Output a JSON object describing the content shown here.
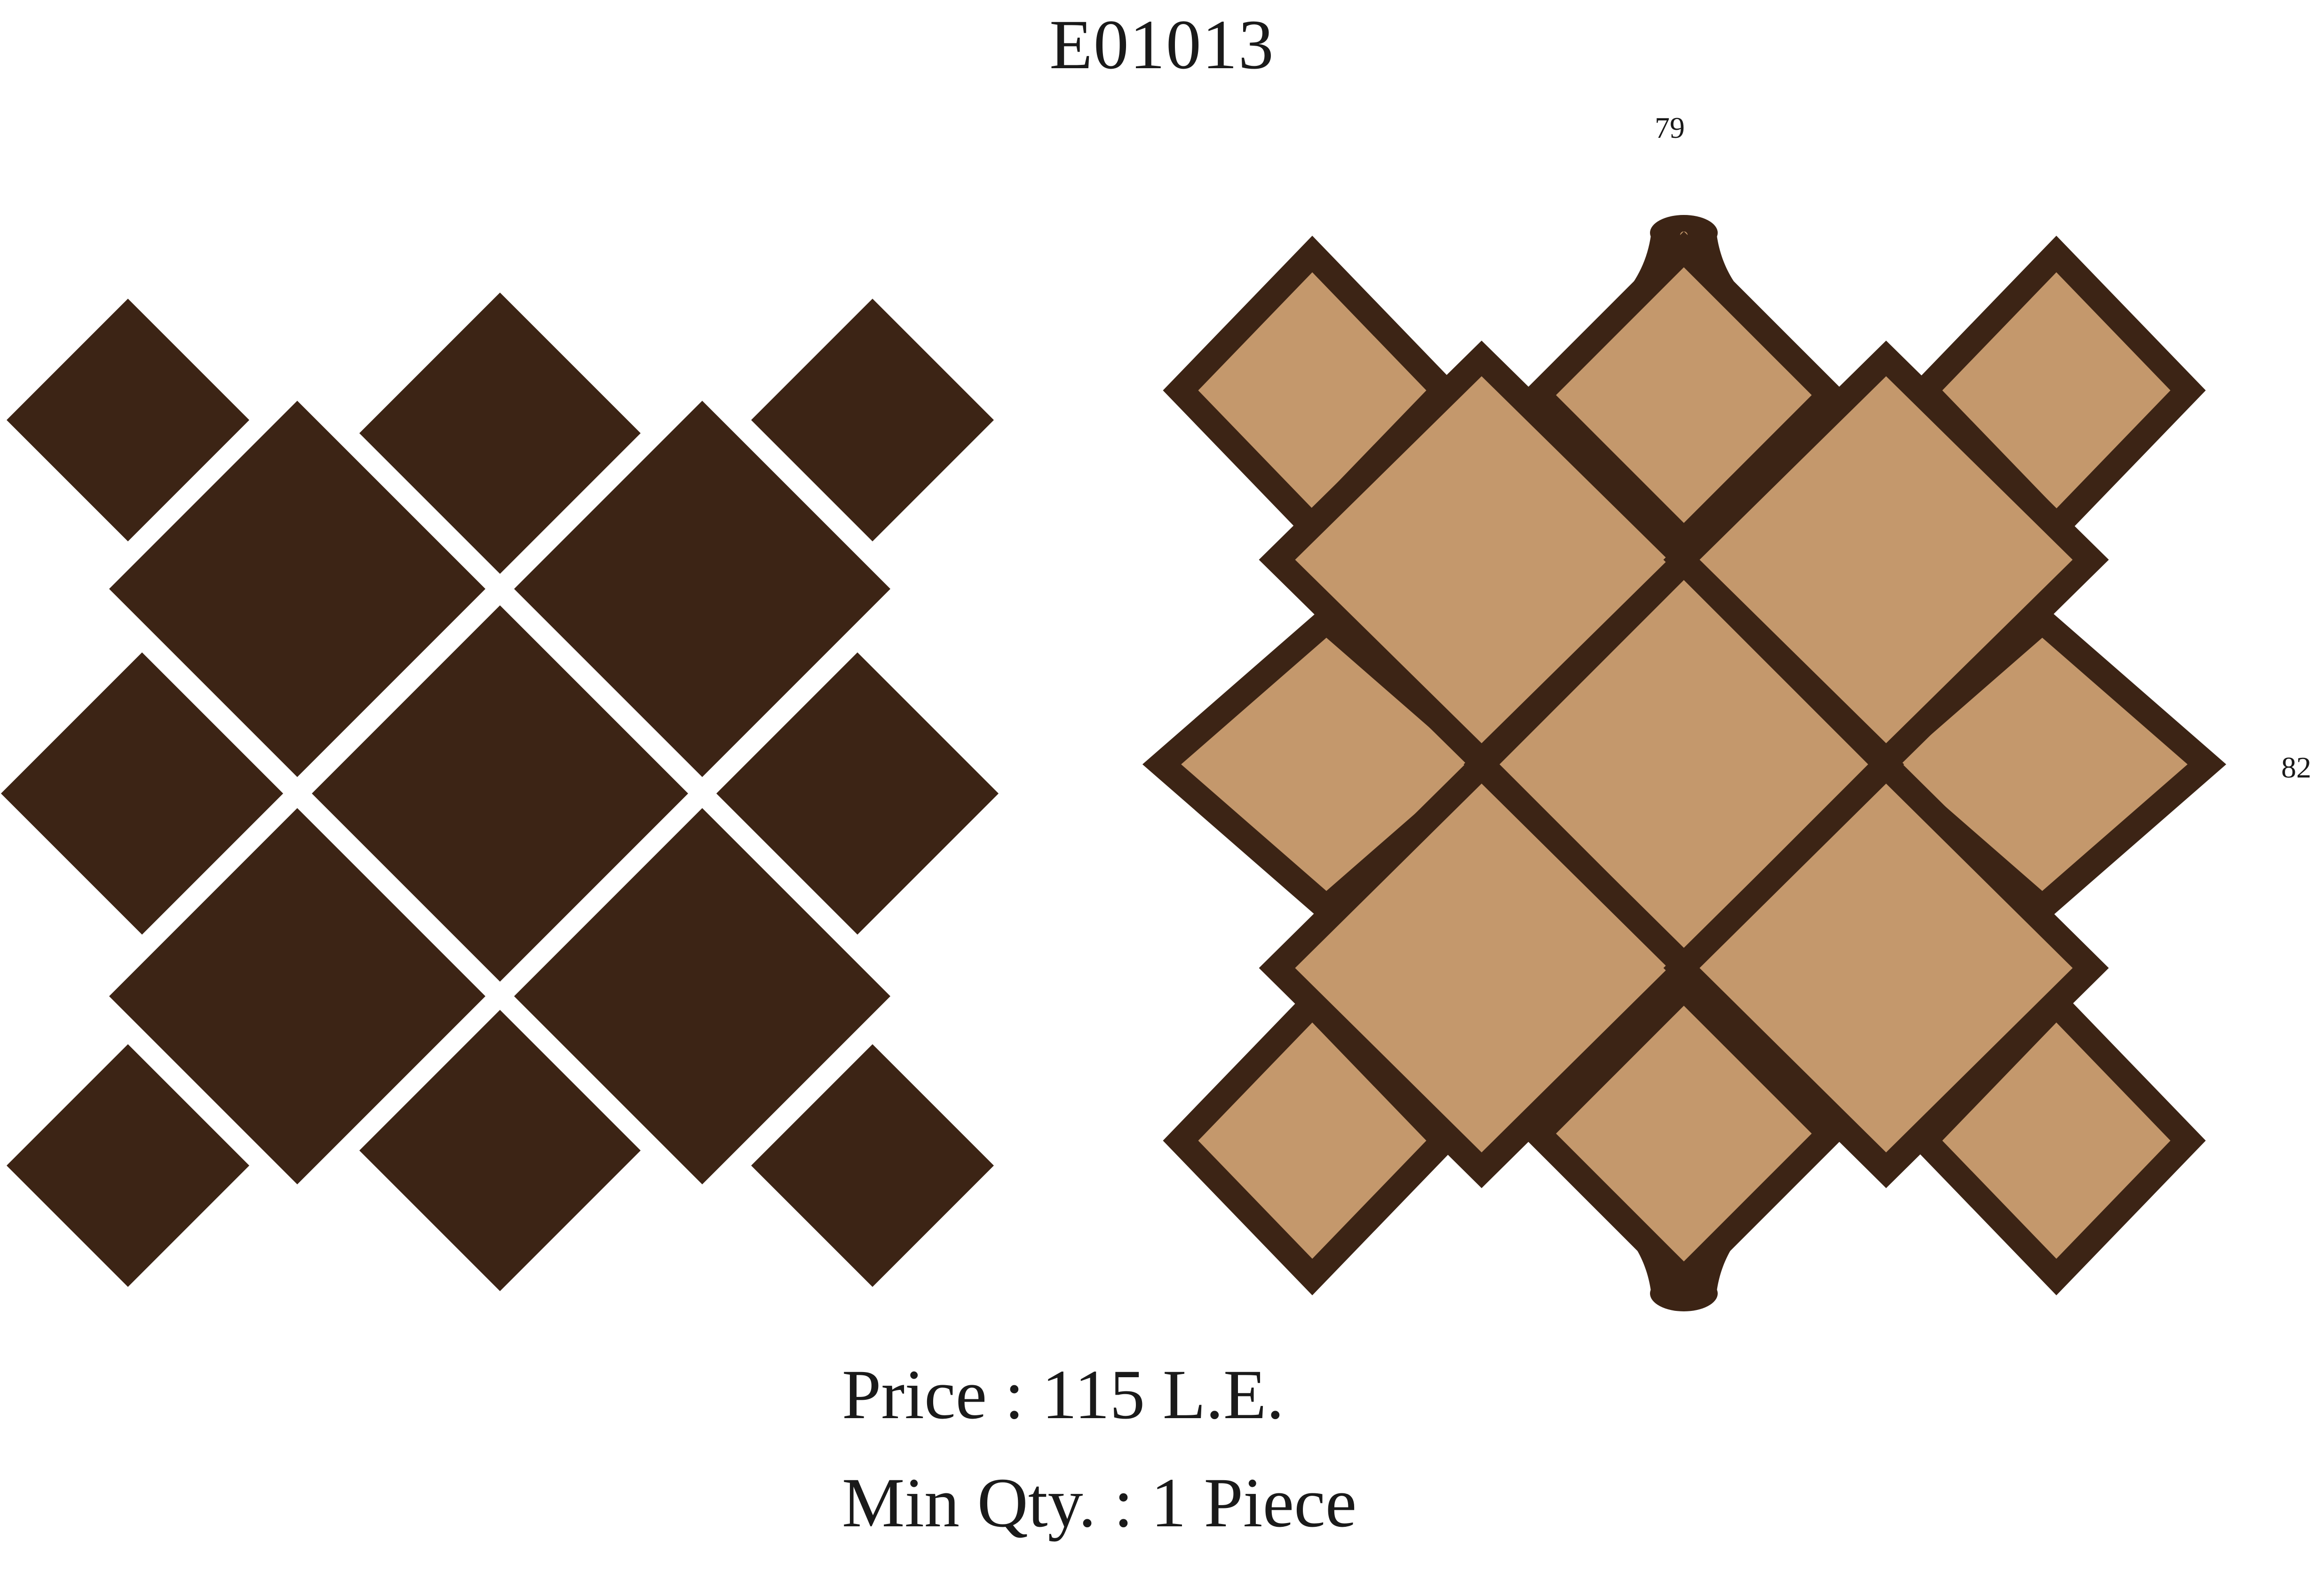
{
  "product": {
    "code": "E01013",
    "price_label": "Price",
    "price_value": "115 L.E.",
    "min_qty_label": "Min Qty.",
    "min_qty_value": "1 Piece"
  },
  "dimensions": {
    "width": "79",
    "height": "82"
  },
  "colors": {
    "background": "#ffffff",
    "dark_wood": "#3c2415",
    "light_wood": "#c4986c",
    "text": "#1a1a1a"
  },
  "illustrations": {
    "left": "solid-diamond-tile-pattern",
    "right": "framed-diamond-tile-pattern-with-hangers"
  }
}
